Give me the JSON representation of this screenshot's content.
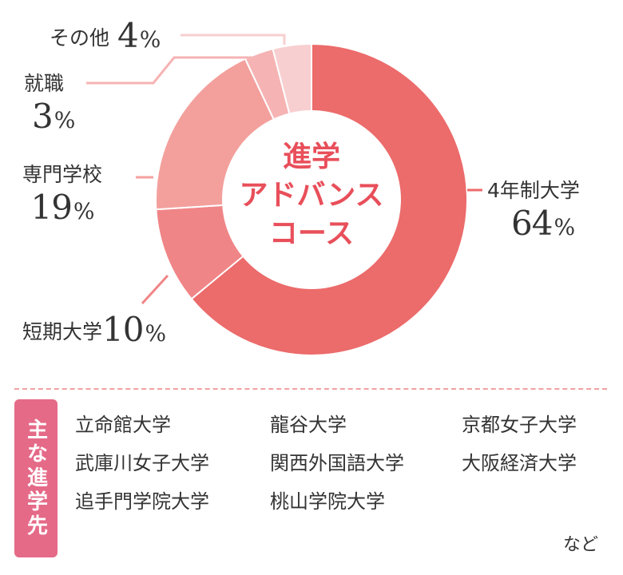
{
  "chart_data": {
    "type": "pie",
    "title_lines": [
      "進学",
      "アドバンス",
      "コース"
    ],
    "categories": [
      "4年制大学",
      "短期大学",
      "専門学校",
      "就職",
      "その他"
    ],
    "values": [
      64,
      10,
      19,
      3,
      4
    ],
    "unit": "%",
    "colors": [
      "#ec6b6b",
      "#f08587",
      "#f3a09d",
      "#f6b3b3",
      "#f8cfd0"
    ],
    "title_color": "#e84f5a"
  },
  "destinations": {
    "tag": "主な進学先",
    "items": [
      "立命館大学",
      "龍谷大学",
      "京都女子大学",
      "武庫川女子大学",
      "関西外国語大学",
      "大阪経済大学",
      "追手門学院大学",
      "桃山学院大学"
    ],
    "footer": "など"
  }
}
